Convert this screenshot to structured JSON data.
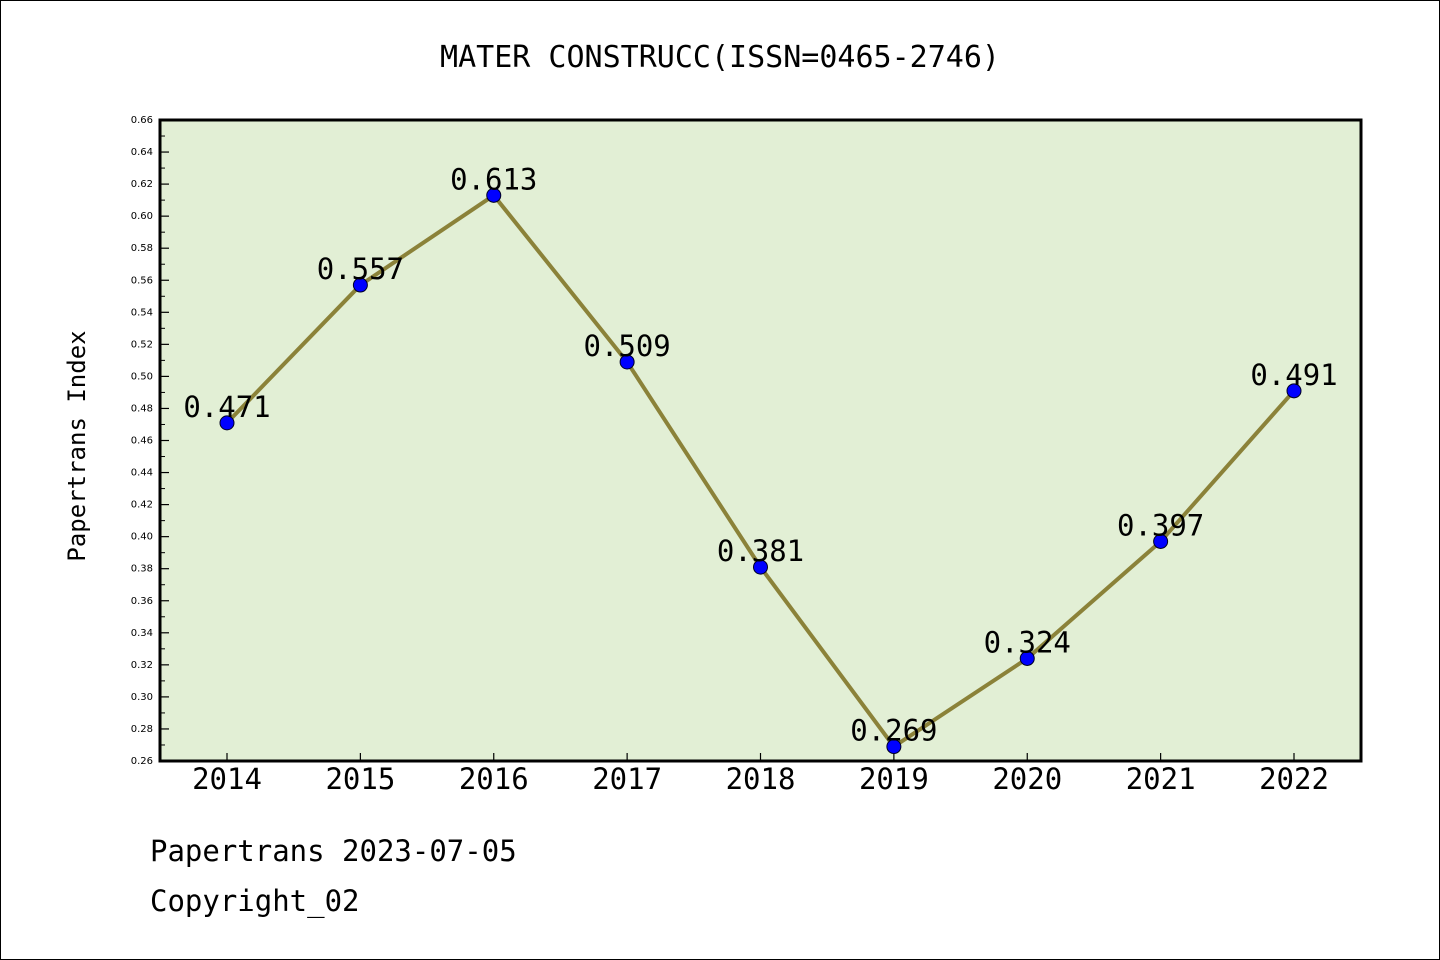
{
  "chart_data": {
    "type": "line",
    "title": "MATER CONSTRUCC(ISSN=0465-2746)",
    "xlabel": "",
    "ylabel": "Papertrans Index",
    "categories": [
      "2014",
      "2015",
      "2016",
      "2017",
      "2018",
      "2019",
      "2020",
      "2021",
      "2022"
    ],
    "values": [
      0.471,
      0.557,
      0.613,
      0.509,
      0.381,
      0.269,
      0.324,
      0.397,
      0.491
    ],
    "value_labels": [
      "0.471",
      "0.557",
      "0.613",
      "0.509",
      "0.381",
      "0.269",
      "0.324",
      "0.397",
      "0.491"
    ],
    "ylim": [
      0.26,
      0.66
    ],
    "yticks": [
      "0.26",
      "0.28",
      "0.30",
      "0.32",
      "0.34",
      "0.36",
      "0.38",
      "0.40",
      "0.42",
      "0.44",
      "0.46",
      "0.48",
      "0.50",
      "0.52",
      "0.54",
      "0.56",
      "0.58",
      "0.60",
      "0.62",
      "0.64",
      "0.66"
    ],
    "grid": false,
    "colors": {
      "plot_background": "#e2efd5",
      "line": "#8b8239",
      "marker": "#0000ff"
    }
  },
  "footer": {
    "date_text": "Papertrans 2023-07-05",
    "copyright_text": "Copyright_02"
  }
}
